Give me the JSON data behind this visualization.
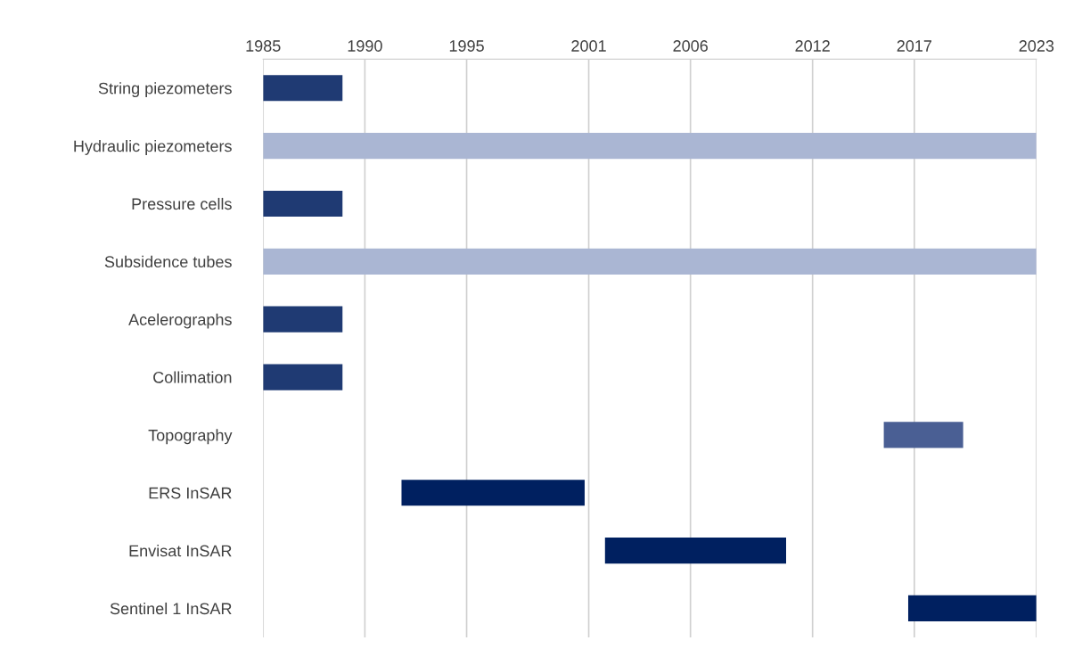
{
  "chart_data": {
    "type": "bar",
    "orientation": "horizontal",
    "categories": [
      "String piezometers",
      "Hydraulic piezometers",
      "Pressure cells",
      "Subsidence tubes",
      "Acelerographs",
      "Collimation",
      "Topography",
      "ERS InSAR",
      "Envisat InSAR",
      "Sentinel 1 InSAR"
    ],
    "base": [
      1985,
      1985,
      1985,
      1985,
      1985,
      1985,
      2015.5,
      1991.8,
      2001.8,
      2016.7
    ],
    "values": [
      3.9,
      38,
      3.9,
      38,
      3.9,
      3.9,
      3.9,
      9.0,
      8.9,
      6.3
    ],
    "colors": [
      "#1f3a73",
      "#aab6d3",
      "#1f3a73",
      "#aab6d3",
      "#1f3a73",
      "#1f3a73",
      "#4a5f94",
      "#002060",
      "#002060",
      "#002060"
    ],
    "xlim": [
      1985,
      2023
    ],
    "xticks": [
      1985,
      1990,
      1995,
      2001,
      2006,
      2012,
      2017,
      2023
    ],
    "grid": "x"
  }
}
